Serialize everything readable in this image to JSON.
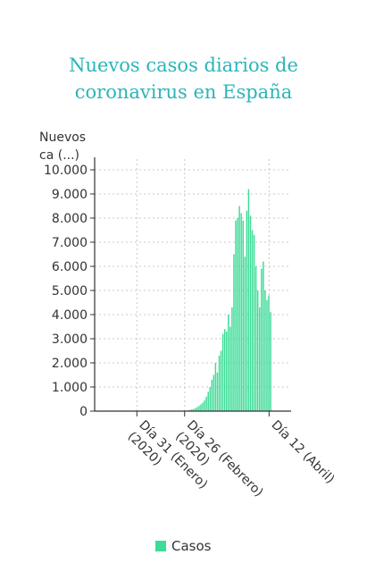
{
  "chart_data": {
    "type": "bar",
    "title_lines": [
      "Nuevos casos diarios de",
      "coronavirus en España"
    ],
    "ylabel_lines": [
      "Nuevos",
      "ca (...)"
    ],
    "ylim": [
      0,
      10000
    ],
    "yticks": [
      {
        "value": 0,
        "label": "0"
      },
      {
        "value": 1000,
        "label": "1.000"
      },
      {
        "value": 2000,
        "label": "2.000"
      },
      {
        "value": 3000,
        "label": "3.000"
      },
      {
        "value": 4000,
        "label": "4.000"
      },
      {
        "value": 5000,
        "label": "5.000"
      },
      {
        "value": 6000,
        "label": "6.000"
      },
      {
        "value": 7000,
        "label": "7.000"
      },
      {
        "value": 8000,
        "label": "8.000"
      },
      {
        "value": 9000,
        "label": "9.000"
      },
      {
        "value": 10000,
        "label": "10.000"
      }
    ],
    "xticks": [
      {
        "date": "2020-01-31",
        "label": "Día 31 (Enero) (2020)"
      },
      {
        "date": "2020-02-26",
        "label": "Día 26 (Febrero) (2020)"
      },
      {
        "date": "2020-04-12",
        "label": "Día 12 (Abril)"
      }
    ],
    "xlim": [
      "2020-01-08",
      "2020-04-24"
    ],
    "grid": true,
    "legend_position": "bottom-center",
    "series": [
      {
        "name": "Casos",
        "color": "#3ddc97",
        "points": [
          {
            "x": "2020-02-26",
            "y": 10
          },
          {
            "x": "2020-02-27",
            "y": 20
          },
          {
            "x": "2020-02-28",
            "y": 30
          },
          {
            "x": "2020-02-29",
            "y": 50
          },
          {
            "x": "2020-03-01",
            "y": 70
          },
          {
            "x": "2020-03-02",
            "y": 90
          },
          {
            "x": "2020-03-03",
            "y": 120
          },
          {
            "x": "2020-03-04",
            "y": 170
          },
          {
            "x": "2020-03-05",
            "y": 220
          },
          {
            "x": "2020-03-06",
            "y": 280
          },
          {
            "x": "2020-03-07",
            "y": 350
          },
          {
            "x": "2020-03-08",
            "y": 450
          },
          {
            "x": "2020-03-09",
            "y": 600
          },
          {
            "x": "2020-03-10",
            "y": 800
          },
          {
            "x": "2020-03-11",
            "y": 1000
          },
          {
            "x": "2020-03-12",
            "y": 1300
          },
          {
            "x": "2020-03-13",
            "y": 1500
          },
          {
            "x": "2020-03-14",
            "y": 2000
          },
          {
            "x": "2020-03-15",
            "y": 1600
          },
          {
            "x": "2020-03-16",
            "y": 2300
          },
          {
            "x": "2020-03-17",
            "y": 2500
          },
          {
            "x": "2020-03-18",
            "y": 3200
          },
          {
            "x": "2020-03-19",
            "y": 3400
          },
          {
            "x": "2020-03-20",
            "y": 3300
          },
          {
            "x": "2020-03-21",
            "y": 4000
          },
          {
            "x": "2020-03-22",
            "y": 3500
          },
          {
            "x": "2020-03-23",
            "y": 4300
          },
          {
            "x": "2020-03-24",
            "y": 6500
          },
          {
            "x": "2020-03-25",
            "y": 7900
          },
          {
            "x": "2020-03-26",
            "y": 8000
          },
          {
            "x": "2020-03-27",
            "y": 8500
          },
          {
            "x": "2020-03-28",
            "y": 8200
          },
          {
            "x": "2020-03-29",
            "y": 7900
          },
          {
            "x": "2020-03-30",
            "y": 6400
          },
          {
            "x": "2020-03-31",
            "y": 8300
          },
          {
            "x": "2020-04-01",
            "y": 9200
          },
          {
            "x": "2020-04-02",
            "y": 8100
          },
          {
            "x": "2020-04-03",
            "y": 7500
          },
          {
            "x": "2020-04-04",
            "y": 7300
          },
          {
            "x": "2020-04-05",
            "y": 6000
          },
          {
            "x": "2020-04-06",
            "y": 5000
          },
          {
            "x": "2020-04-07",
            "y": 4300
          },
          {
            "x": "2020-04-08",
            "y": 5900
          },
          {
            "x": "2020-04-09",
            "y": 6200
          },
          {
            "x": "2020-04-10",
            "y": 5000
          },
          {
            "x": "2020-04-11",
            "y": 4600
          },
          {
            "x": "2020-04-12",
            "y": 4800
          },
          {
            "x": "2020-04-13",
            "y": 4100
          }
        ]
      }
    ]
  }
}
